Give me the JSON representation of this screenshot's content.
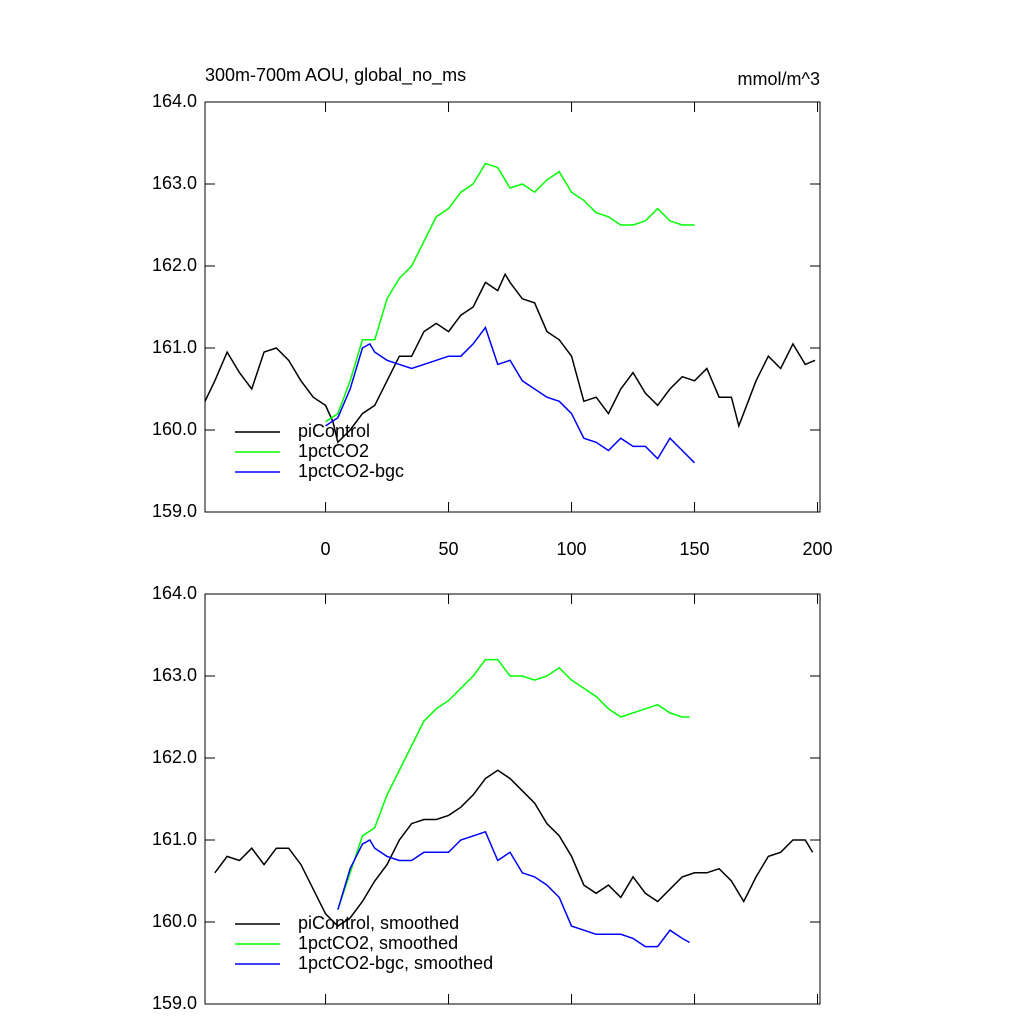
{
  "chart_data": [
    {
      "type": "line",
      "title": "300m-700m AOU, global_no_ms",
      "units": "mmol/m^3",
      "xlim": [
        -49,
        201
      ],
      "ylim": [
        159,
        164
      ],
      "xticks": [
        0,
        50,
        100,
        150,
        200
      ],
      "yticks": [
        {
          "value": 159,
          "label": "159.0"
        },
        {
          "value": 160,
          "label": "160.0"
        },
        {
          "value": 161,
          "label": "161.0"
        },
        {
          "value": 162,
          "label": "162.0"
        },
        {
          "value": 163,
          "label": "163.0"
        },
        {
          "value": 164,
          "label": "164.0"
        }
      ],
      "legend": "lower left",
      "series": [
        {
          "name": "piControl",
          "color": "#000000",
          "x": [
            -49,
            -45,
            -40,
            -35,
            -30,
            -25,
            -20,
            -15,
            -10,
            -5,
            0,
            3,
            5,
            10,
            15,
            20,
            25,
            30,
            35,
            40,
            45,
            50,
            55,
            60,
            65,
            70,
            73,
            75,
            80,
            85,
            90,
            95,
            100,
            105,
            110,
            115,
            120,
            125,
            130,
            135,
            140,
            145,
            150,
            155,
            160,
            165,
            168,
            175,
            180,
            185,
            190,
            195,
            199
          ],
          "values": [
            160.35,
            160.6,
            160.95,
            160.7,
            160.5,
            160.95,
            161.0,
            160.85,
            160.6,
            160.4,
            160.3,
            160.1,
            159.85,
            160.0,
            160.2,
            160.3,
            160.6,
            160.9,
            160.9,
            161.2,
            161.3,
            161.2,
            161.4,
            161.5,
            161.8,
            161.7,
            161.9,
            161.8,
            161.6,
            161.55,
            161.2,
            161.1,
            160.9,
            160.35,
            160.4,
            160.2,
            160.5,
            160.7,
            160.45,
            160.3,
            160.5,
            160.65,
            160.6,
            160.75,
            160.4,
            160.4,
            160.05,
            160.6,
            160.9,
            160.75,
            161.05,
            160.8,
            160.85
          ]
        },
        {
          "name": "1pctCO2",
          "color": "#00ff00",
          "x": [
            0,
            5,
            10,
            15,
            20,
            25,
            30,
            35,
            40,
            45,
            50,
            55,
            60,
            65,
            70,
            75,
            80,
            85,
            90,
            95,
            100,
            105,
            110,
            115,
            120,
            125,
            130,
            135,
            140,
            145,
            150
          ],
          "values": [
            160.1,
            160.2,
            160.6,
            161.1,
            161.1,
            161.6,
            161.85,
            162.0,
            162.3,
            162.6,
            162.7,
            162.9,
            163.0,
            163.25,
            163.2,
            162.95,
            163.0,
            162.9,
            163.05,
            163.15,
            162.9,
            162.8,
            162.65,
            162.6,
            162.5,
            162.5,
            162.55,
            162.7,
            162.55,
            162.5,
            162.5
          ]
        },
        {
          "name": "1pctCO2-bgc",
          "color": "#0000ff",
          "x": [
            0,
            5,
            10,
            15,
            18,
            20,
            25,
            30,
            35,
            40,
            45,
            50,
            55,
            60,
            65,
            70,
            75,
            80,
            85,
            90,
            95,
            100,
            105,
            110,
            115,
            120,
            125,
            130,
            135,
            140,
            145,
            150
          ],
          "values": [
            160.05,
            160.15,
            160.5,
            161.0,
            161.05,
            160.95,
            160.85,
            160.8,
            160.75,
            160.8,
            160.85,
            160.9,
            160.9,
            161.05,
            161.25,
            160.8,
            160.85,
            160.6,
            160.5,
            160.4,
            160.35,
            160.2,
            159.9,
            159.85,
            159.75,
            159.9,
            159.8,
            159.8,
            159.65,
            159.9,
            159.75,
            159.6
          ]
        }
      ]
    },
    {
      "type": "line",
      "xlim": [
        -49,
        201
      ],
      "ylim": [
        159,
        164
      ],
      "yticks": [
        {
          "value": 159,
          "label": "159.0"
        },
        {
          "value": 160,
          "label": "160.0"
        },
        {
          "value": 161,
          "label": "161.0"
        },
        {
          "value": 162,
          "label": "162.0"
        },
        {
          "value": 163,
          "label": "163.0"
        },
        {
          "value": 164,
          "label": "164.0"
        }
      ],
      "legend": "lower left",
      "series": [
        {
          "name": "piControl, smoothed",
          "color": "#000000",
          "x": [
            -45,
            -40,
            -35,
            -30,
            -25,
            -20,
            -15,
            -10,
            -5,
            0,
            5,
            10,
            15,
            20,
            25,
            30,
            35,
            40,
            45,
            50,
            55,
            60,
            65,
            70,
            75,
            80,
            85,
            90,
            95,
            100,
            105,
            110,
            115,
            120,
            125,
            130,
            135,
            140,
            145,
            150,
            155,
            160,
            165,
            170,
            175,
            180,
            185,
            190,
            195,
            198
          ],
          "values": [
            160.6,
            160.8,
            160.75,
            160.9,
            160.7,
            160.9,
            160.9,
            160.7,
            160.4,
            160.1,
            159.95,
            160.05,
            160.25,
            160.5,
            160.7,
            161.0,
            161.2,
            161.25,
            161.25,
            161.3,
            161.4,
            161.55,
            161.75,
            161.85,
            161.75,
            161.6,
            161.45,
            161.2,
            161.05,
            160.8,
            160.45,
            160.35,
            160.45,
            160.3,
            160.55,
            160.35,
            160.25,
            160.4,
            160.55,
            160.6,
            160.6,
            160.65,
            160.5,
            160.25,
            160.55,
            160.8,
            160.85,
            161.0,
            161.0,
            160.85
          ]
        },
        {
          "name": "1pctCO2, smoothed",
          "color": "#00ff00",
          "x": [
            5,
            10,
            15,
            20,
            25,
            30,
            35,
            40,
            45,
            50,
            55,
            60,
            65,
            70,
            75,
            80,
            85,
            90,
            95,
            100,
            105,
            110,
            115,
            120,
            125,
            130,
            135,
            140,
            145,
            148
          ],
          "values": [
            160.15,
            160.6,
            161.05,
            161.15,
            161.55,
            161.85,
            162.15,
            162.45,
            162.6,
            162.7,
            162.85,
            163.0,
            163.2,
            163.2,
            163.0,
            163.0,
            162.95,
            163.0,
            163.1,
            162.95,
            162.85,
            162.75,
            162.6,
            162.5,
            162.55,
            162.6,
            162.65,
            162.55,
            162.5,
            162.5
          ]
        },
        {
          "name": "1pctCO2-bgc, smoothed",
          "color": "#0000ff",
          "x": [
            5,
            10,
            15,
            18,
            20,
            25,
            30,
            35,
            40,
            45,
            50,
            55,
            60,
            65,
            70,
            75,
            80,
            85,
            90,
            95,
            100,
            105,
            110,
            115,
            120,
            125,
            130,
            135,
            140,
            145,
            148
          ],
          "values": [
            160.15,
            160.65,
            160.95,
            161.0,
            160.9,
            160.8,
            160.75,
            160.75,
            160.85,
            160.85,
            160.85,
            161.0,
            161.05,
            161.1,
            160.75,
            160.85,
            160.6,
            160.55,
            160.45,
            160.3,
            159.95,
            159.9,
            159.85,
            159.85,
            159.85,
            159.8,
            159.7,
            159.7,
            159.9,
            159.8,
            159.75
          ]
        }
      ]
    }
  ]
}
